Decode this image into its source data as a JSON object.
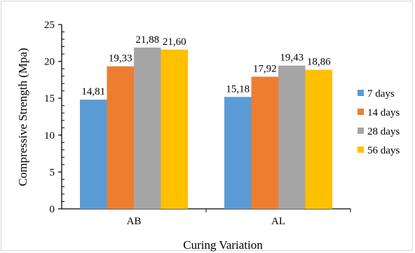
{
  "chart_data": {
    "type": "bar",
    "title": "",
    "xlabel": "Curing Variation",
    "ylabel": "Compressive Strength (Mpa)",
    "categories": [
      "AB",
      "AL"
    ],
    "ylim": [
      0,
      25
    ],
    "yticks": [
      0,
      5,
      10,
      15,
      20,
      25
    ],
    "ytick_labels": [
      "0",
      "5",
      "10",
      "15",
      "20",
      "25"
    ],
    "grid": false,
    "legend_position": "right",
    "series": [
      {
        "name": "7 days",
        "color": "#5b9bd5",
        "values": [
          14.81,
          15.18
        ],
        "labels": [
          "14,81",
          "15,18"
        ]
      },
      {
        "name": "14 days",
        "color": "#ed7d31",
        "values": [
          19.33,
          17.92
        ],
        "labels": [
          "19,33",
          "17,92"
        ]
      },
      {
        "name": "28 days",
        "color": "#a5a5a5",
        "values": [
          21.88,
          19.43
        ],
        "labels": [
          "21,88",
          "19,43"
        ]
      },
      {
        "name": "56 days",
        "color": "#ffc000",
        "values": [
          21.6,
          18.86
        ],
        "labels": [
          "21,60",
          "18,86"
        ]
      }
    ]
  }
}
